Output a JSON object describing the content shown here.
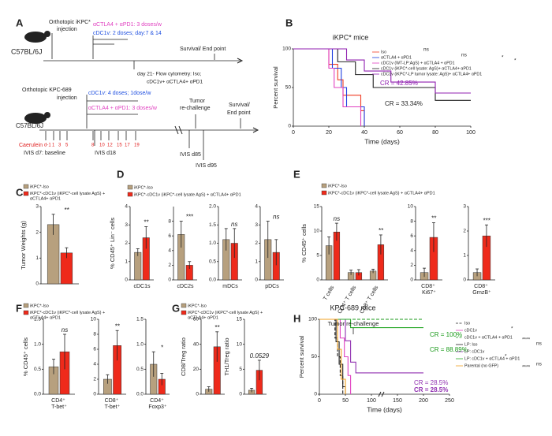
{
  "panel_labels": [
    "A",
    "B",
    "C",
    "D",
    "E",
    "F",
    "G",
    "H"
  ],
  "schematic_a": {
    "texts": [
      "C57BL/6J",
      "Orthotopic iKPC*",
      "injection",
      "αCTLA4 + αPD1: 3 doses/w",
      "cDC1v: 2 doses; day:7 & 14",
      "Survival/ End point",
      "day 21- Flow cytometry: Iso;",
      "cDC1v+ αCTLA4+ αPD1",
      "Orthotopic KPC-689",
      "injection",
      "cDC1v: 4 doses; 1dose/w",
      "αCTLA4 + αPD1: 3 doses/w",
      "Tumor",
      "re-challenge",
      "Survival/",
      "End point",
      "C57BL/6J",
      "Caerulein",
      "IVIS d7: baseline",
      "d-1",
      "1",
      "3",
      "5",
      "8",
      "10",
      "12",
      "15",
      "17",
      "19",
      "IVIS d18",
      "IVIS d85",
      "IVIS d95"
    ]
  },
  "chart_data": [
    {
      "type": "survival",
      "title": "iKPC* mice",
      "ylabel": "Percent survival",
      "xlabel": "Time (days)",
      "xlim": [
        0,
        100
      ],
      "xticks": [
        0,
        20,
        40,
        60,
        80,
        100
      ],
      "ylim": [
        0,
        100
      ],
      "yticks": [
        0,
        50,
        100
      ],
      "series": [
        {
          "name": "Iso",
          "color": "#f03c24",
          "x": [
            0,
            20,
            25,
            28,
            38,
            40
          ],
          "values": [
            100,
            80,
            60,
            40,
            20,
            0
          ]
        },
        {
          "name": "αCTLA4 + αPD1",
          "color": "#1f3fe0",
          "x": [
            0,
            22,
            27,
            30,
            40
          ],
          "values": [
            100,
            75,
            50,
            25,
            0
          ]
        },
        {
          "name": "cDC1v (WT-LP:AgS) + αCTLA4 + αPD1",
          "color": "#e040c0",
          "x": [
            0,
            20,
            23,
            28,
            38
          ],
          "values": [
            100,
            75,
            50,
            25,
            0
          ]
        },
        {
          "name": "cDC1v (iKPC*-cell lysate: AgS)+ αCTLA4+ αPD1",
          "color": "#222222",
          "x": [
            0,
            25,
            35,
            45,
            80,
            100
          ],
          "values": [
            100,
            83.3,
            66.7,
            50,
            33.34,
            33.34
          ]
        },
        {
          "name": "cDC1v (iKPC*-LP tumor lysate: AgS)+ αCTLA4+ αPD1",
          "color": "#9020b0",
          "x": [
            0,
            30,
            40,
            55,
            80,
            100
          ],
          "values": [
            100,
            85.7,
            71.4,
            57.1,
            42.85,
            42.85
          ]
        }
      ],
      "cr_labels": [
        {
          "text": "CR = 42.85%",
          "color": "#9020b0"
        },
        {
          "text": "CR = 33.34%",
          "color": "#222222"
        }
      ],
      "sig_labels": [
        "ns",
        "ns",
        "*",
        "*"
      ]
    },
    {
      "type": "bar",
      "ylabel": "Tumor Weights (g)",
      "categories": [
        null
      ],
      "ylim": [
        0,
        3
      ],
      "yticks": [
        0,
        1,
        2,
        3
      ],
      "series": [
        {
          "name": "iKPC*-Iso",
          "color": "#b7a07e",
          "values": [
            2.3
          ],
          "errors": [
            0.4
          ]
        },
        {
          "name": "iKPC*-cDC1v (iKPC*-cell lysate AgS) + αCTLA4+ αPD1",
          "color": "#ee2a1b",
          "values": [
            1.2
          ],
          "errors": [
            0.2
          ]
        }
      ],
      "annotations": [
        "**"
      ]
    },
    {
      "type": "bar",
      "ylabel": "% CD45⁺ Lin⁻ cells",
      "categories": [
        "cDC1s"
      ],
      "ylim": [
        0,
        4
      ],
      "yticks": [
        0,
        1,
        2,
        3,
        4
      ],
      "series": [
        {
          "name": "iKPC*-Iso",
          "color": "#b7a07e",
          "values": [
            1.5
          ],
          "errors": [
            0.2
          ]
        },
        {
          "name": "iKPC*-cDC1v (iKPC*-cell lysate AgS) + αCTLA4+ αPD1",
          "color": "#ee2a1b",
          "values": [
            2.3
          ],
          "errors": [
            0.6
          ]
        }
      ],
      "annotations": [
        "**"
      ]
    },
    {
      "type": "bar",
      "categories": [
        "cDC2s"
      ],
      "ylim": [
        0,
        10
      ],
      "yticks": [
        0,
        2,
        4,
        6,
        8
      ],
      "series": [
        {
          "color": "#b7a07e",
          "values": [
            6.2
          ],
          "errors": [
            1.8
          ]
        },
        {
          "color": "#ee2a1b",
          "values": [
            2.0
          ],
          "errors": [
            0.5
          ]
        }
      ],
      "annotations": [
        "***"
      ]
    },
    {
      "type": "bar",
      "categories": [
        "mDCs"
      ],
      "ylim": [
        0,
        2.0
      ],
      "yticks": [
        {
          "value": 0,
          "label": "0.0"
        },
        0.5,
        {
          "value": 1,
          "label": "1.0"
        },
        1.5,
        {
          "value": 2,
          "label": "2.0"
        }
      ],
      "series": [
        {
          "color": "#b7a07e",
          "values": [
            1.1
          ],
          "errors": [
            0.3
          ]
        },
        {
          "color": "#ee2a1b",
          "values": [
            1.0
          ],
          "errors": [
            0.4
          ]
        }
      ],
      "annotations": [
        "ns"
      ]
    },
    {
      "type": "bar",
      "categories": [
        "pDCs"
      ],
      "ylim": [
        0,
        4
      ],
      "yticks": [
        0,
        1,
        2,
        3,
        4
      ],
      "series": [
        {
          "color": "#b7a07e",
          "values": [
            2.2
          ],
          "errors": [
            1.0
          ]
        },
        {
          "color": "#ee2a1b",
          "values": [
            1.5
          ],
          "errors": [
            0.7
          ]
        }
      ],
      "annotations": [
        "ns"
      ]
    },
    {
      "type": "bar",
      "ylabel": "% CD45⁺ cells",
      "categories": [
        "T cells",
        "CD4⁺ T cells",
        "CD8⁺ T cells"
      ],
      "ylim": [
        0,
        15
      ],
      "yticks": [
        0,
        5,
        10,
        15
      ],
      "series": [
        {
          "name": "iKPC*-Iso",
          "color": "#b7a07e",
          "values": [
            7,
            1.5,
            1.8
          ],
          "errors": [
            1.8,
            0.5,
            0.4
          ]
        },
        {
          "name": "iKPC*-cDC1v (iKPC*-cell lysate AgS) + αCTLA4+ αPD1",
          "color": "#ee2a1b",
          "values": [
            9.8,
            1.5,
            7.2
          ],
          "errors": [
            1.8,
            0.6,
            2.0
          ]
        }
      ],
      "annotations": [
        "ns",
        null,
        "**"
      ]
    },
    {
      "type": "bar",
      "categories": [
        "CD8⁺ Ki67⁺"
      ],
      "ylim": [
        0,
        10
      ],
      "yticks": [
        0,
        2,
        4,
        6,
        8,
        10
      ],
      "series": [
        {
          "color": "#b7a07e",
          "values": [
            1.0
          ],
          "errors": [
            0.6
          ]
        },
        {
          "color": "#ee2a1b",
          "values": [
            5.8
          ],
          "errors": [
            2.0
          ]
        }
      ],
      "annotations": [
        "**"
      ]
    },
    {
      "type": "bar",
      "categories": [
        "CD8⁺ GrnzB⁺"
      ],
      "ylim": [
        0,
        3
      ],
      "yticks": [
        0,
        1,
        2,
        3
      ],
      "series": [
        {
          "color": "#b7a07e",
          "values": [
            0.3
          ],
          "errors": [
            0.15
          ]
        },
        {
          "color": "#ee2a1b",
          "values": [
            1.8
          ],
          "errors": [
            0.45
          ]
        }
      ],
      "annotations": [
        "***"
      ]
    },
    {
      "type": "bar",
      "ylabel": "% CD45⁺ cells",
      "categories": [
        "CD4⁺ T-bet⁺"
      ],
      "ylim": [
        0,
        1.5
      ],
      "yticks": [
        {
          "value": 0,
          "label": "0.0"
        },
        0.5,
        {
          "value": 1,
          "label": "1.0"
        },
        1.5
      ],
      "series": [
        {
          "name": "iKPC*-Iso",
          "color": "#b7a07e",
          "values": [
            0.55
          ],
          "errors": [
            0.15
          ]
        },
        {
          "name": "iKPC*-cDC1v (iKPC*-cell lysate AgS) + αCTLA4+ αPD1",
          "color": "#ee2a1b",
          "values": [
            0.85
          ],
          "errors": [
            0.35
          ]
        }
      ],
      "annotations": [
        "ns"
      ]
    },
    {
      "type": "bar",
      "categories": [
        "CD8⁺ T-bet⁺"
      ],
      "ylim": [
        0,
        10
      ],
      "yticks": [
        0,
        2,
        4,
        6,
        8,
        10
      ],
      "series": [
        {
          "color": "#b7a07e",
          "values": [
            2.0
          ],
          "errors": [
            0.6
          ]
        },
        {
          "color": "#ee2a1b",
          "values": [
            6.5
          ],
          "errors": [
            2.0
          ]
        }
      ],
      "annotations": [
        "**"
      ]
    },
    {
      "type": "bar",
      "categories": [
        "CD4⁺ Foxp3⁺"
      ],
      "ylim": [
        0,
        1.5
      ],
      "yticks": [
        {
          "value": 0,
          "label": "0.0"
        },
        0.5,
        {
          "value": 1,
          "label": "1.0"
        },
        1.5
      ],
      "series": [
        {
          "color": "#b7a07e",
          "values": [
            0.6
          ],
          "errors": [
            0.25
          ]
        },
        {
          "color": "#ee2a1b",
          "values": [
            0.3
          ],
          "errors": [
            0.12
          ]
        }
      ],
      "annotations": [
        "*"
      ]
    },
    {
      "type": "bar",
      "ylabel": "CD8/Treg ratio",
      "categories": [
        null
      ],
      "ylim": [
        0,
        60
      ],
      "yticks": [
        0,
        20,
        40,
        60
      ],
      "series": [
        {
          "name": "iKPC*-Iso",
          "color": "#b7a07e",
          "values": [
            4
          ],
          "errors": [
            2
          ]
        },
        {
          "name": "iKPC*-cDC1v (iKPC*-cell lysate AgS) + αCTLA4+ αPD1",
          "color": "#ee2a1b",
          "values": [
            38
          ],
          "errors": [
            12
          ]
        }
      ],
      "annotations": [
        "**"
      ]
    },
    {
      "type": "bar",
      "ylabel": "TH1/Treg ratio",
      "categories": [
        null
      ],
      "ylim": [
        0,
        15
      ],
      "yticks": [
        0,
        5,
        10,
        15
      ],
      "series": [
        {
          "color": "#b7a07e",
          "values": [
            0.8
          ],
          "errors": [
            0.4
          ]
        },
        {
          "color": "#ee2a1b",
          "values": [
            4.8
          ],
          "errors": [
            2.0
          ]
        }
      ],
      "annotations": [
        "0.0529"
      ]
    },
    {
      "type": "survival",
      "title": "KPC-689 mice",
      "ylabel": "Percent survival",
      "xlabel": "Time (days)",
      "xlim": [
        0,
        250
      ],
      "xticks": [
        0,
        50,
        100,
        150,
        200,
        250
      ],
      "ylim": [
        0,
        100
      ],
      "yticks": [
        0,
        50,
        100
      ],
      "series": [
        {
          "name": "Iso",
          "color": "#222222",
          "dashed": true,
          "x": [
            0,
            30,
            35,
            40,
            45
          ],
          "values": [
            100,
            75,
            50,
            25,
            0
          ]
        },
        {
          "name": "cDC1v",
          "color": "#e040c0",
          "x": [
            0,
            40,
            48,
            55,
            60
          ],
          "values": [
            100,
            75,
            50,
            25,
            0
          ]
        },
        {
          "name": "cDC1v + αCTLA4 + αPD1",
          "color": "#1a9a1a",
          "dashed": true,
          "x": [
            0,
            200
          ],
          "values": [
            100,
            100
          ]
        },
        {
          "name": "LP: Iso",
          "color": "#222222",
          "x": [
            0,
            32,
            38,
            45,
            50
          ],
          "values": [
            100,
            70,
            40,
            10,
            0
          ]
        },
        {
          "name": "LP: cDC1v",
          "color": "#9030b0",
          "x": [
            0,
            50,
            60,
            70,
            200
          ],
          "values": [
            100,
            71.4,
            42.8,
            28.5,
            28.5
          ]
        },
        {
          "name": "LP: cDC1v + αCTLA4 + αPD1",
          "color": "#28a828",
          "x": [
            0,
            60,
            200
          ],
          "values": [
            100,
            88.89,
            88.89
          ]
        },
        {
          "name": "Parental (no GFP)",
          "color": "#f0a020",
          "x": [
            0,
            35,
            42,
            50
          ],
          "values": [
            100,
            60,
            20,
            0
          ]
        }
      ],
      "annotation": "Tumor re-challenge",
      "cr_labels": [
        {
          "text": "CR = 100%",
          "color": "#1a9a1a"
        },
        {
          "text": "CR = 88.89%",
          "color": "#1a9a1a"
        },
        {
          "text": "CR = 28.5%",
          "color": "#9030b0"
        },
        {
          "text": "CR = 28.5%",
          "color": "#9030b0"
        }
      ],
      "sig_labels": [
        "*",
        "****",
        "ns",
        "*",
        "****",
        "ns"
      ]
    }
  ]
}
